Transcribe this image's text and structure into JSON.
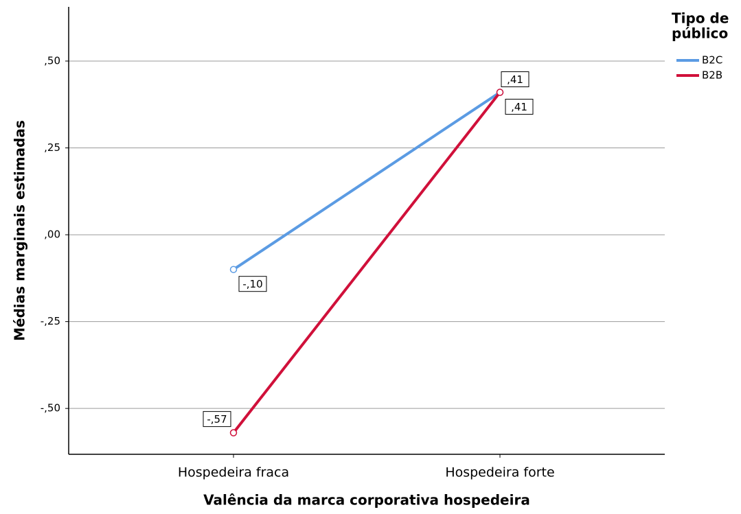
{
  "chart_data": {
    "type": "line",
    "x_label": "Valência da marca corporativa hospedeira",
    "y_label": "Médias marginais estimadas",
    "categories": [
      "Hospedeira fraca",
      "Hospedeira forte"
    ],
    "series": [
      {
        "name": "B2C",
        "color": "#5b9be3",
        "values": [
          -0.1,
          0.41
        ],
        "value_labels": [
          "-,10",
          ",41"
        ]
      },
      {
        "name": "B2B",
        "color": "#d0103a",
        "values": [
          -0.57,
          0.41
        ],
        "value_labels": [
          "-,57",
          ",41"
        ]
      }
    ],
    "ylim": [
      -0.632,
      0.656
    ],
    "yticks": [
      {
        "value": -0.5,
        "label": "-,50"
      },
      {
        "value": -0.25,
        "label": "-,25"
      },
      {
        "value": 0,
        "label": ",00"
      },
      {
        "value": 0.25,
        "label": ",25"
      },
      {
        "value": 0.5,
        "label": ",50"
      }
    ],
    "grid": true,
    "legend_title": [
      "Tipo de",
      "público"
    ],
    "legend_position": "right"
  }
}
